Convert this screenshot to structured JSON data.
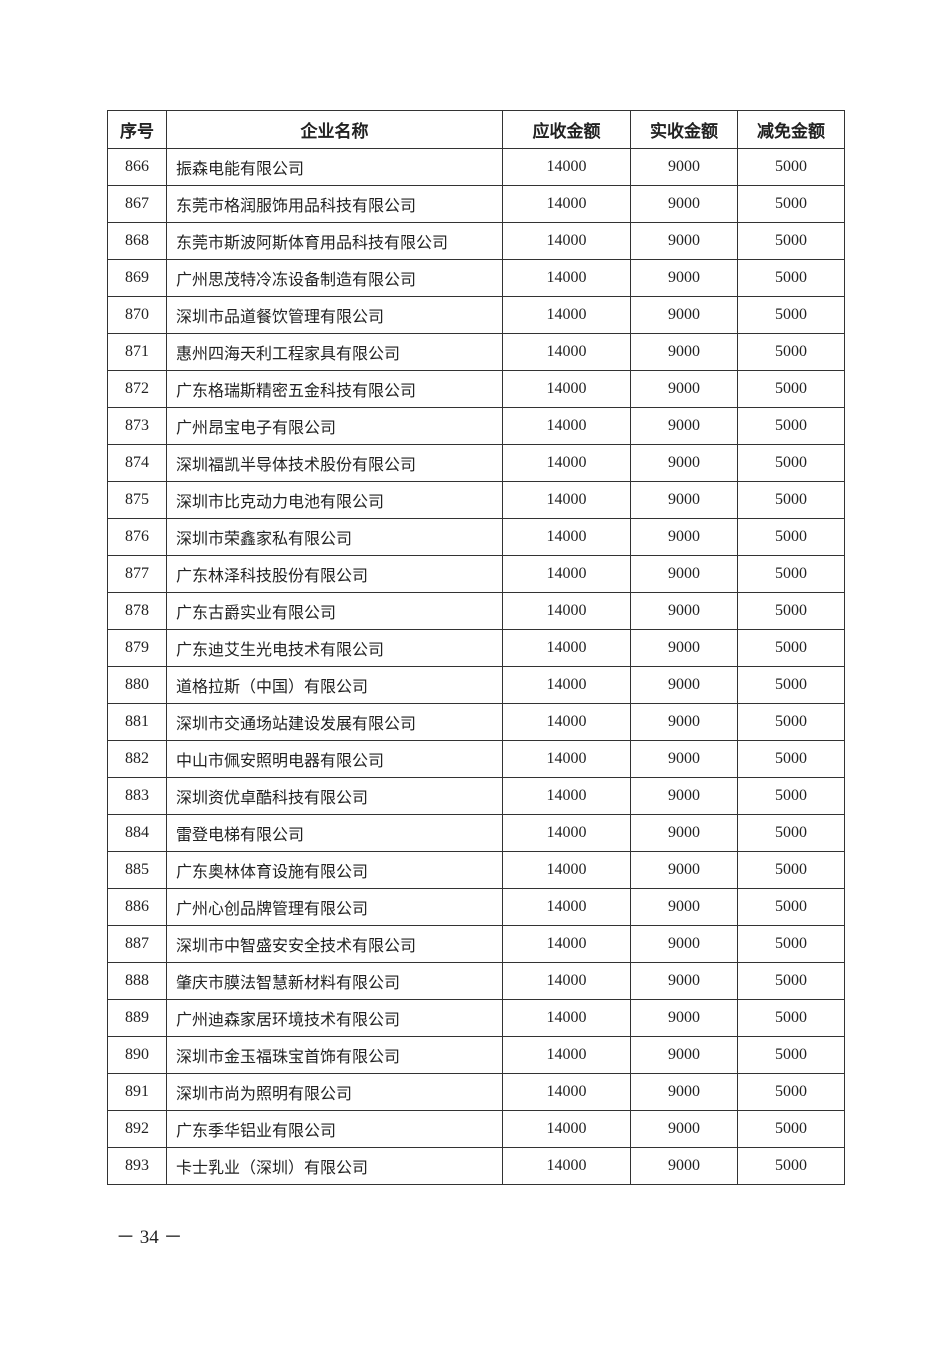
{
  "table": {
    "headers": [
      "序号",
      "企业名称",
      "应收金额",
      "实收金额",
      "减免金额"
    ],
    "rows": [
      [
        "866",
        "振森电能有限公司",
        "14000",
        "9000",
        "5000"
      ],
      [
        "867",
        "东莞市格润服饰用品科技有限公司",
        "14000",
        "9000",
        "5000"
      ],
      [
        "868",
        "东莞市斯波阿斯体育用品科技有限公司",
        "14000",
        "9000",
        "5000"
      ],
      [
        "869",
        "广州思茂特冷冻设备制造有限公司",
        "14000",
        "9000",
        "5000"
      ],
      [
        "870",
        "深圳市品道餐饮管理有限公司",
        "14000",
        "9000",
        "5000"
      ],
      [
        "871",
        "惠州四海天利工程家具有限公司",
        "14000",
        "9000",
        "5000"
      ],
      [
        "872",
        "广东格瑞斯精密五金科技有限公司",
        "14000",
        "9000",
        "5000"
      ],
      [
        "873",
        "广州昂宝电子有限公司",
        "14000",
        "9000",
        "5000"
      ],
      [
        "874",
        "深圳福凯半导体技术股份有限公司",
        "14000",
        "9000",
        "5000"
      ],
      [
        "875",
        "深圳市比克动力电池有限公司",
        "14000",
        "9000",
        "5000"
      ],
      [
        "876",
        "深圳市荣鑫家私有限公司",
        "14000",
        "9000",
        "5000"
      ],
      [
        "877",
        "广东林泽科技股份有限公司",
        "14000",
        "9000",
        "5000"
      ],
      [
        "878",
        "广东古爵实业有限公司",
        "14000",
        "9000",
        "5000"
      ],
      [
        "879",
        "广东迪艾生光电技术有限公司",
        "14000",
        "9000",
        "5000"
      ],
      [
        "880",
        "道格拉斯（中国）有限公司",
        "14000",
        "9000",
        "5000"
      ],
      [
        "881",
        "深圳市交通场站建设发展有限公司",
        "14000",
        "9000",
        "5000"
      ],
      [
        "882",
        "中山市佩安照明电器有限公司",
        "14000",
        "9000",
        "5000"
      ],
      [
        "883",
        "深圳资优卓酷科技有限公司",
        "14000",
        "9000",
        "5000"
      ],
      [
        "884",
        "雷登电梯有限公司",
        "14000",
        "9000",
        "5000"
      ],
      [
        "885",
        "广东奥林体育设施有限公司",
        "14000",
        "9000",
        "5000"
      ],
      [
        "886",
        "广州心创品牌管理有限公司",
        "14000",
        "9000",
        "5000"
      ],
      [
        "887",
        "深圳市中智盛安安全技术有限公司",
        "14000",
        "9000",
        "5000"
      ],
      [
        "888",
        "肇庆市膜法智慧新材料有限公司",
        "14000",
        "9000",
        "5000"
      ],
      [
        "889",
        "广州迪森家居环境技术有限公司",
        "14000",
        "9000",
        "5000"
      ],
      [
        "890",
        "深圳市金玉福珠宝首饰有限公司",
        "14000",
        "9000",
        "5000"
      ],
      [
        "891",
        "深圳市尚为照明有限公司",
        "14000",
        "9000",
        "5000"
      ],
      [
        "892",
        "广东季华铝业有限公司",
        "14000",
        "9000",
        "5000"
      ],
      [
        "893",
        "卡士乳业（深圳）有限公司",
        "14000",
        "9000",
        "5000"
      ]
    ]
  },
  "footer": {
    "page_number": "－ 34 －"
  }
}
